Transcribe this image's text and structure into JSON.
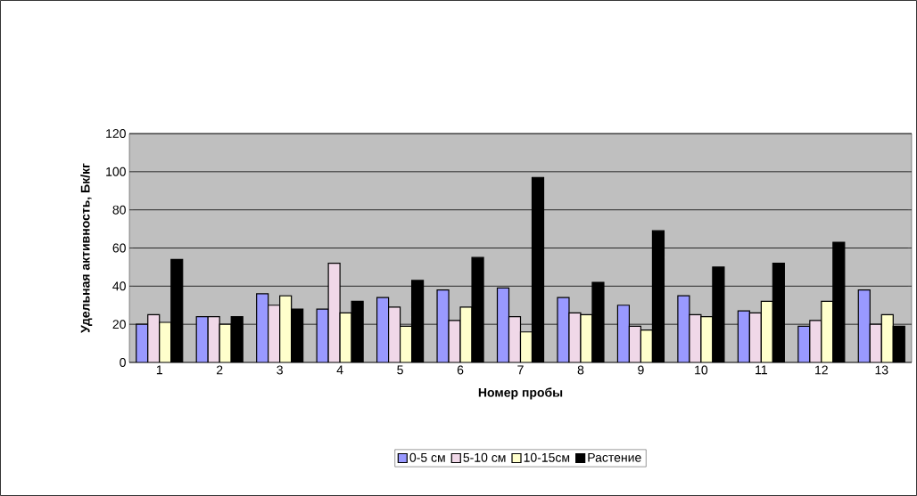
{
  "chart_data": {
    "type": "bar",
    "xlabel": "Номер пробы",
    "ylabel": "Удельная активность, Бк/кг",
    "categories": [
      "1",
      "2",
      "3",
      "4",
      "5",
      "6",
      "7",
      "8",
      "9",
      "10",
      "11",
      "12",
      "13"
    ],
    "series": [
      {
        "name": "0-5 см",
        "color": "#9999ff",
        "values": [
          20,
          24,
          36,
          28,
          34,
          38,
          39,
          34,
          30,
          35,
          27,
          19,
          38
        ]
      },
      {
        "name": "5-10 см",
        "color": "#f0d8e8",
        "values": [
          25,
          24,
          30,
          52,
          29,
          22,
          24,
          26,
          19,
          25,
          26,
          22,
          20
        ]
      },
      {
        "name": "10-15см",
        "color": "#ffffcc",
        "values": [
          21,
          20,
          35,
          26,
          19,
          29,
          16,
          25,
          17,
          24,
          32,
          32,
          25
        ]
      },
      {
        "name": "Растение",
        "color": "#000000",
        "values": [
          54,
          24,
          28,
          32,
          43,
          55,
          97,
          42,
          69,
          50,
          52,
          63,
          19
        ]
      }
    ],
    "ylim": [
      0,
      120
    ],
    "yticks": [
      0,
      20,
      40,
      60,
      80,
      100,
      120
    ],
    "grid": "y",
    "legend": "bottom"
  }
}
